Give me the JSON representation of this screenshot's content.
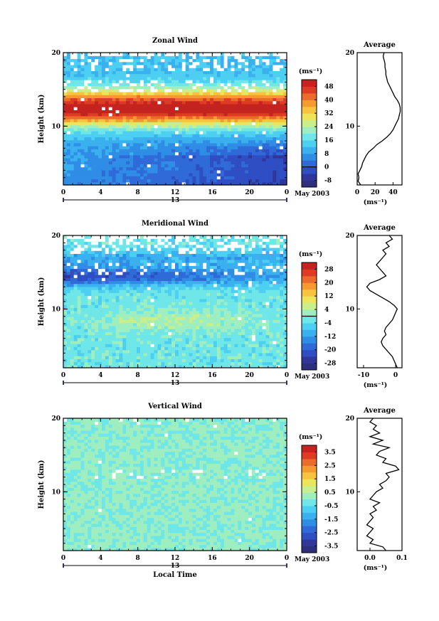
{
  "chart_data": [
    {
      "id": "zonal",
      "type": "heatmap",
      "title": "Zonal Wind",
      "ylabel": "Height (km)",
      "xlabel": "",
      "x_ticks": [
        "0",
        "4",
        "8",
        "12",
        "16",
        "20",
        "0"
      ],
      "y_ticks": [
        "10",
        "20"
      ],
      "xlim": [
        0,
        24
      ],
      "ylim": [
        2,
        20
      ],
      "date_label": "13",
      "month_label": "May 2003",
      "colorbar": {
        "unit": "(ms⁻¹)",
        "labels": [
          "-8",
          "0",
          "8",
          "16",
          "24",
          "32",
          "40",
          "48"
        ],
        "range": [
          -12,
          52
        ],
        "contour_level": "0"
      },
      "profile_levels_km": [
        2,
        2.5,
        3,
        3.5,
        4,
        4.5,
        5,
        5.5,
        6,
        6.5,
        7,
        7.5,
        8,
        8.5,
        9,
        9.5,
        10,
        10.5,
        11,
        11.5,
        12,
        12.5,
        13,
        13.5,
        14,
        14.5,
        15,
        15.5,
        16,
        16.5,
        17,
        17.5,
        18,
        18.5,
        19,
        19.5,
        20
      ],
      "average": {
        "title": "Average",
        "xlim": [
          0,
          50
        ],
        "x_ticks": [
          "0",
          "20",
          "40"
        ],
        "unit": "(ms⁻¹)",
        "values": [
          4,
          1,
          2,
          1,
          3,
          5,
          6,
          8,
          10,
          13,
          18,
          22,
          28,
          33,
          37,
          40,
          42,
          44,
          46,
          47,
          48,
          48,
          47,
          45,
          42,
          40,
          38,
          36,
          34,
          33,
          32,
          32,
          31,
          31,
          30,
          29,
          30
        ]
      }
    },
    {
      "id": "meridional",
      "type": "heatmap",
      "title": "Meridional Wind",
      "ylabel": "Height (km)",
      "xlabel": "",
      "x_ticks": [
        "0",
        "4",
        "8",
        "12",
        "16",
        "20",
        "0"
      ],
      "y_ticks": [
        "10",
        "20"
      ],
      "xlim": [
        0,
        24
      ],
      "ylim": [
        2,
        20
      ],
      "date_label": "13",
      "month_label": "May 2003",
      "colorbar": {
        "unit": "(ms⁻¹)",
        "labels": [
          "-28",
          "-20",
          "-12",
          "-4",
          "4",
          "12",
          "20",
          "28"
        ],
        "range": [
          -32,
          32
        ],
        "contour_level": "0"
      },
      "profile_levels_km": [
        2,
        2.5,
        3,
        3.5,
        4,
        4.5,
        5,
        5.5,
        6,
        6.5,
        7,
        7.5,
        8,
        8.5,
        9,
        9.5,
        10,
        10.5,
        11,
        11.5,
        12,
        12.5,
        13,
        13.5,
        14,
        14.5,
        15,
        15.5,
        16,
        16.5,
        17,
        17.5,
        18,
        18.5,
        19,
        19.5,
        20
      ],
      "average": {
        "title": "Average",
        "xlim": [
          -12,
          2
        ],
        "x_ticks": [
          "-10",
          "0"
        ],
        "unit": "(ms⁻¹)",
        "values": [
          0.5,
          0,
          -0.5,
          -1,
          -2,
          -3,
          -4,
          -4.5,
          -4,
          -3,
          -3.5,
          -3,
          -2,
          -1,
          -0.5,
          0,
          0.5,
          -0.5,
          -2,
          -4,
          -6,
          -8,
          -9,
          -8,
          -5,
          -3,
          -4,
          -5,
          -6,
          -5,
          -4,
          -3,
          -4,
          -2,
          -3,
          -1,
          -2
        ]
      }
    },
    {
      "id": "vertical",
      "type": "heatmap",
      "title": "Vertical Wind",
      "ylabel": "Height (km)",
      "xlabel": "Local Time",
      "x_ticks": [
        "0",
        "4",
        "8",
        "12",
        "16",
        "20",
        "0"
      ],
      "y_ticks": [
        "10",
        "20"
      ],
      "xlim": [
        0,
        24
      ],
      "ylim": [
        2,
        20
      ],
      "date_label": "13",
      "month_label": "May 2003",
      "colorbar": {
        "unit": "(ms⁻¹)",
        "labels": [
          "-3.5",
          "-2.5",
          "-1.5",
          "-0.5",
          "0.5",
          "1.5",
          "2.5",
          "3.5"
        ],
        "range": [
          -4,
          4
        ],
        "contour_level": ""
      },
      "profile_levels_km": [
        2,
        2.5,
        3,
        3.5,
        4,
        4.5,
        5,
        5.5,
        6,
        6.5,
        7,
        7.5,
        8,
        8.5,
        9,
        9.5,
        10,
        10.5,
        11,
        11.5,
        12,
        12.5,
        13,
        13.5,
        14,
        14.5,
        15,
        15.5,
        16,
        16.5,
        17,
        17.5,
        18,
        18.5,
        19,
        19.5,
        20
      ],
      "average": {
        "title": "Average",
        "xlim": [
          -0.04,
          0.1
        ],
        "x_ticks": [
          "0.0",
          "0.1"
        ],
        "unit": "(ms⁻¹)",
        "values": [
          0.05,
          0.04,
          0.0,
          0.01,
          -0.01,
          0.0,
          0.01,
          -0.01,
          0.0,
          0.01,
          0.0,
          0.02,
          0.01,
          0.03,
          0.0,
          0.01,
          0.02,
          0.04,
          0.03,
          0.05,
          0.06,
          0.05,
          0.09,
          0.08,
          0.04,
          0.05,
          0.02,
          0.03,
          0.06,
          0.01,
          0.04,
          0.0,
          0.03,
          0.01,
          0.02,
          0.0,
          0.01
        ]
      }
    }
  ]
}
